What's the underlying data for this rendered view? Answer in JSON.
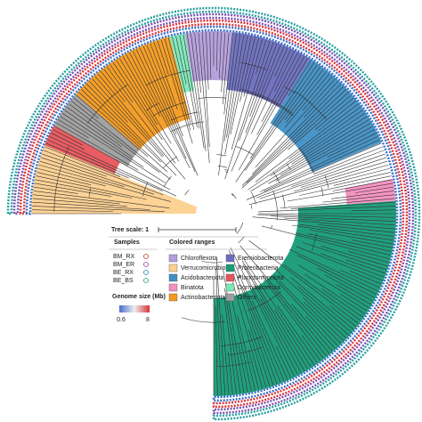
{
  "tree_scale": "Tree scale: 1",
  "samples": {
    "title": "Samples",
    "items": [
      "BM_RX",
      "BM_ER",
      "BE_RX",
      "BE_BS"
    ]
  },
  "genome_size": {
    "title": "Genome size (Mb)",
    "min": "0.6",
    "max": "8"
  },
  "colored_ranges": {
    "title": "Colored ranges",
    "items": [
      "Chloroflexota",
      "Verrucomicrobiota",
      "Acidobacteriota",
      "Binatota",
      "Actinobacteriota",
      "Eremiobacterota",
      "Proteobacteria",
      "Planctomycetota",
      "Dormibacterota",
      "Others"
    ]
  }
}
